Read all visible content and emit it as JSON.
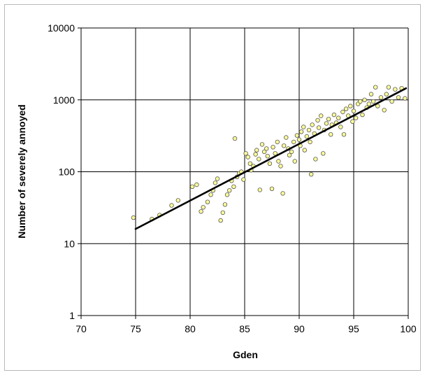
{
  "chart_data": {
    "type": "scatter",
    "title": "",
    "xlabel": "Gden",
    "ylabel": "Number of severely annoyed",
    "x_ticks": [
      "70",
      "75",
      "80",
      "85",
      "90",
      "95",
      "100"
    ],
    "y_ticks": [
      "1",
      "10",
      "100",
      "1000",
      "10000"
    ],
    "xlim": [
      70,
      100
    ],
    "ylim": [
      1,
      10000
    ],
    "y_scale": "log",
    "grid": true,
    "legend": "none",
    "colors": {
      "points_fill": "#ffff99",
      "points_stroke": "#555555",
      "trend_line": "#000000",
      "grid": "#000000"
    },
    "trend_line": {
      "x": [
        75.0,
        99.8
      ],
      "y": [
        16,
        1450
      ]
    },
    "series": [
      {
        "values": [
          [
            74.8,
            23
          ],
          [
            76.5,
            22
          ],
          [
            77.2,
            25
          ],
          [
            78.3,
            34
          ],
          [
            78.9,
            40
          ],
          [
            80.2,
            62
          ],
          [
            80.6,
            66
          ],
          [
            81.0,
            28
          ],
          [
            81.2,
            32
          ],
          [
            81.6,
            38
          ],
          [
            81.9,
            48
          ],
          [
            82.1,
            55
          ],
          [
            82.3,
            70
          ],
          [
            82.5,
            80
          ],
          [
            82.8,
            21
          ],
          [
            83.0,
            27
          ],
          [
            83.2,
            35
          ],
          [
            83.4,
            48
          ],
          [
            83.6,
            55
          ],
          [
            83.8,
            75
          ],
          [
            84.0,
            62
          ],
          [
            84.1,
            290
          ],
          [
            84.3,
            85
          ],
          [
            84.5,
            95
          ],
          [
            84.7,
            100
          ],
          [
            84.9,
            78
          ],
          [
            85.1,
            180
          ],
          [
            85.3,
            160
          ],
          [
            85.5,
            130
          ],
          [
            85.6,
            105
          ],
          [
            85.8,
            120
          ],
          [
            86.0,
            175
          ],
          [
            86.1,
            200
          ],
          [
            86.3,
            150
          ],
          [
            86.4,
            56
          ],
          [
            86.6,
            240
          ],
          [
            86.8,
            190
          ],
          [
            87.0,
            210
          ],
          [
            87.1,
            165
          ],
          [
            87.3,
            130
          ],
          [
            87.5,
            58
          ],
          [
            87.6,
            220
          ],
          [
            87.8,
            180
          ],
          [
            88.0,
            260
          ],
          [
            88.1,
            140
          ],
          [
            88.3,
            120
          ],
          [
            88.5,
            50
          ],
          [
            88.6,
            230
          ],
          [
            88.8,
            300
          ],
          [
            89.0,
            210
          ],
          [
            89.1,
            170
          ],
          [
            89.3,
            190
          ],
          [
            89.5,
            260
          ],
          [
            89.6,
            140
          ],
          [
            89.8,
            320
          ],
          [
            90.0,
            280
          ],
          [
            90.1,
            230
          ],
          [
            90.2,
            360
          ],
          [
            90.4,
            420
          ],
          [
            90.5,
            200
          ],
          [
            90.7,
            310
          ],
          [
            90.9,
            380
          ],
          [
            91.0,
            260
          ],
          [
            91.1,
            92
          ],
          [
            91.2,
            450
          ],
          [
            91.4,
            340
          ],
          [
            91.5,
            150
          ],
          [
            91.7,
            520
          ],
          [
            91.8,
            410
          ],
          [
            92.0,
            600
          ],
          [
            92.2,
            180
          ],
          [
            92.3,
            380
          ],
          [
            92.5,
            470
          ],
          [
            92.7,
            540
          ],
          [
            92.9,
            330
          ],
          [
            93.0,
            450
          ],
          [
            93.2,
            620
          ],
          [
            93.4,
            480
          ],
          [
            93.6,
            560
          ],
          [
            93.8,
            420
          ],
          [
            94.0,
            680
          ],
          [
            94.1,
            330
          ],
          [
            94.3,
            750
          ],
          [
            94.5,
            600
          ],
          [
            94.7,
            820
          ],
          [
            94.9,
            500
          ],
          [
            95.0,
            700
          ],
          [
            95.2,
            560
          ],
          [
            95.4,
            880
          ],
          [
            95.6,
            950
          ],
          [
            95.8,
            620
          ],
          [
            96.0,
            1000
          ],
          [
            96.2,
            780
          ],
          [
            96.4,
            880
          ],
          [
            96.6,
            1200
          ],
          [
            96.8,
            950
          ],
          [
            97.0,
            1500
          ],
          [
            97.2,
            820
          ],
          [
            97.5,
            1080
          ],
          [
            97.8,
            720
          ],
          [
            98.0,
            1200
          ],
          [
            98.2,
            1500
          ],
          [
            98.5,
            950
          ],
          [
            98.8,
            1400
          ],
          [
            99.1,
            1080
          ],
          [
            99.4,
            1450
          ],
          [
            99.7,
            1050
          ]
        ]
      }
    ]
  }
}
